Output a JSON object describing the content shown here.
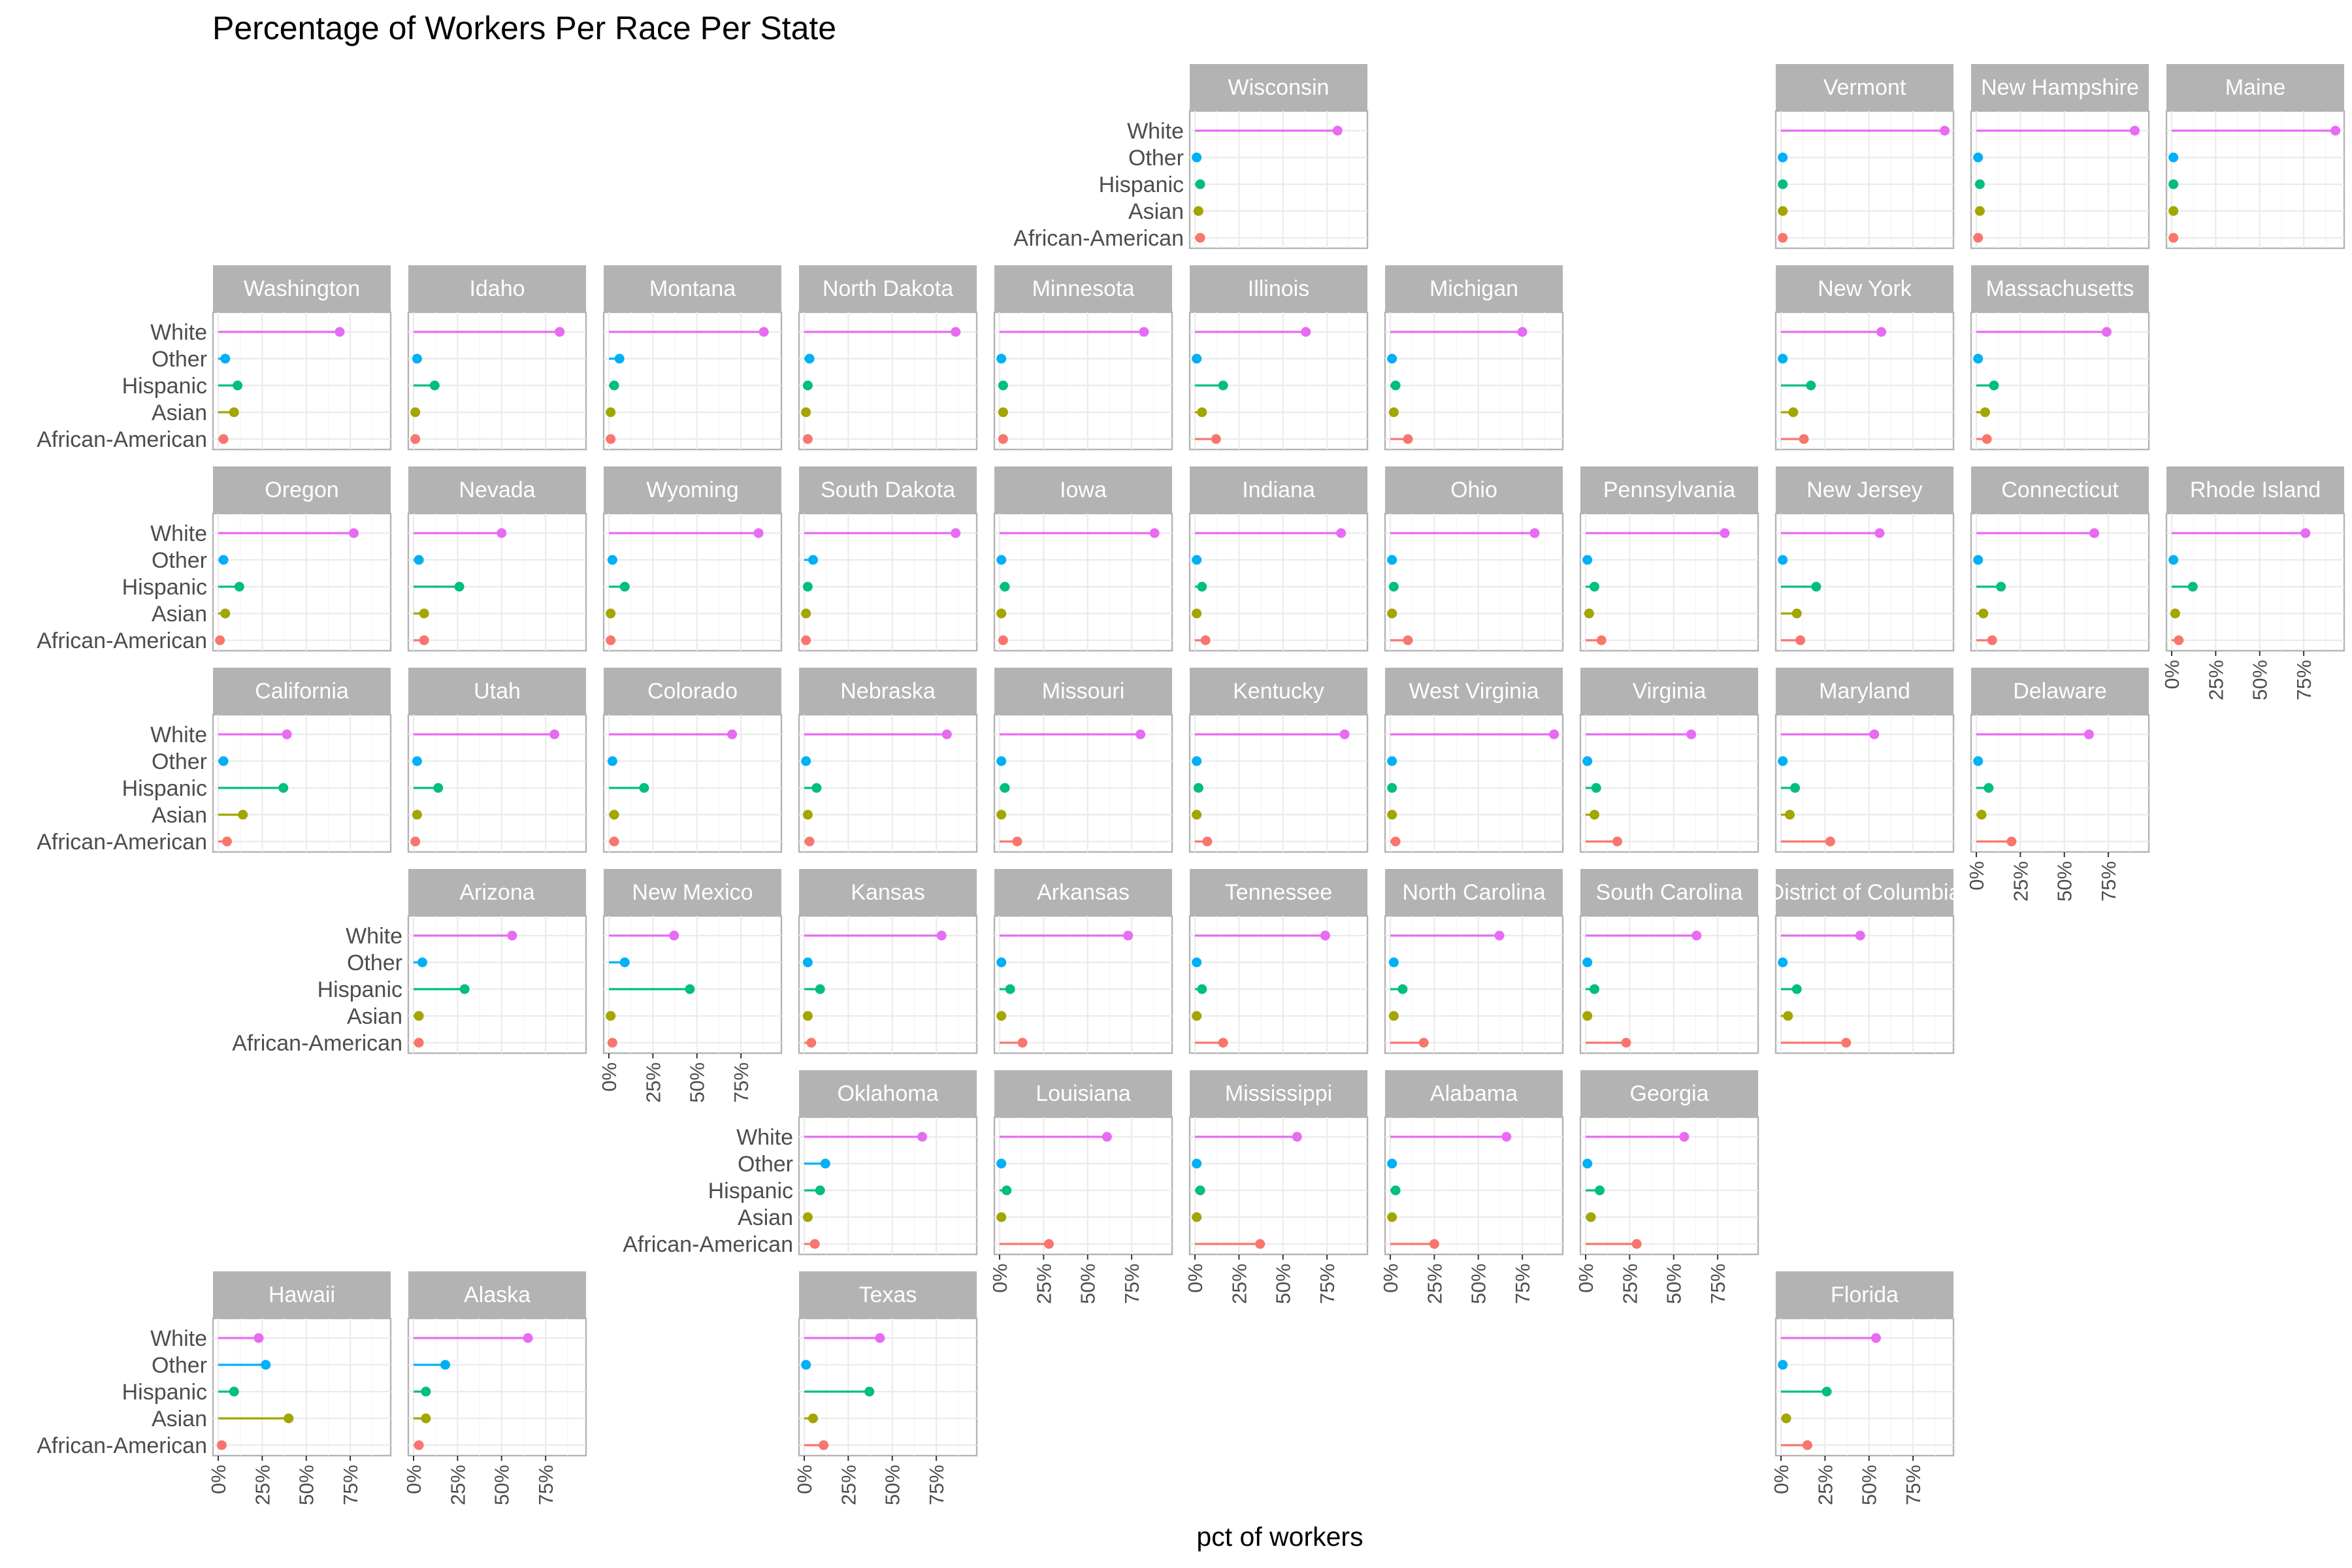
{
  "chart_data": {
    "type": "lollipop-facet",
    "title": "Percentage of Workers Per Race Per State",
    "xlabel": "pct of workers",
    "ylabel": "",
    "xlim": [
      0,
      95
    ],
    "x_ticks": [
      "0%",
      "25%",
      "50%",
      "75%"
    ],
    "categories": [
      "White",
      "Other",
      "Hispanic",
      "Asian",
      "African-American"
    ],
    "series_colors": {
      "White": "#E76BF3",
      "Other": "#00B0F6",
      "Hispanic": "#00BF7D",
      "Asian": "#A3A500",
      "African-American": "#F8766D"
    },
    "grid": true,
    "states": [
      {
        "name": "Wisconsin",
        "values": [
          81,
          1,
          3,
          2,
          3
        ]
      },
      {
        "name": "Vermont",
        "values": [
          93,
          1,
          1,
          1,
          1
        ]
      },
      {
        "name": "New Hampshire",
        "values": [
          90,
          1,
          2,
          2,
          1
        ]
      },
      {
        "name": "Maine",
        "values": [
          93,
          1,
          1,
          1,
          1
        ]
      },
      {
        "name": "Washington",
        "values": [
          69,
          4,
          11,
          9,
          3
        ]
      },
      {
        "name": "Idaho",
        "values": [
          83,
          2,
          12,
          1,
          1
        ]
      },
      {
        "name": "Montana",
        "values": [
          88,
          6,
          3,
          1,
          1
        ]
      },
      {
        "name": "North Dakota",
        "values": [
          86,
          3,
          2,
          1,
          2
        ]
      },
      {
        "name": "Minnesota",
        "values": [
          82,
          1,
          2,
          2,
          2
        ]
      },
      {
        "name": "Illinois",
        "values": [
          63,
          1,
          16,
          4,
          12
        ]
      },
      {
        "name": "Michigan",
        "values": [
          75,
          1,
          3,
          2,
          10
        ]
      },
      {
        "name": "New York",
        "values": [
          57,
          1,
          17,
          7,
          13
        ]
      },
      {
        "name": "Massachusetts",
        "values": [
          74,
          1,
          10,
          5,
          6
        ]
      },
      {
        "name": "Oregon",
        "values": [
          77,
          3,
          12,
          4,
          1
        ]
      },
      {
        "name": "Nevada",
        "values": [
          50,
          3,
          26,
          6,
          6
        ]
      },
      {
        "name": "Wyoming",
        "values": [
          85,
          2,
          9,
          1,
          1
        ]
      },
      {
        "name": "South Dakota",
        "values": [
          86,
          5,
          2,
          1,
          1
        ]
      },
      {
        "name": "Iowa",
        "values": [
          88,
          1,
          3,
          1,
          2
        ]
      },
      {
        "name": "Indiana",
        "values": [
          83,
          1,
          4,
          1,
          6
        ]
      },
      {
        "name": "Ohio",
        "values": [
          82,
          1,
          2,
          1,
          10
        ]
      },
      {
        "name": "Pennsylvania",
        "values": [
          79,
          1,
          5,
          2,
          9
        ]
      },
      {
        "name": "New Jersey",
        "values": [
          56,
          1,
          20,
          9,
          11
        ]
      },
      {
        "name": "Connecticut",
        "values": [
          67,
          1,
          14,
          4,
          9
        ]
      },
      {
        "name": "Rhode Island",
        "values": [
          76,
          1,
          12,
          2,
          4
        ]
      },
      {
        "name": "California",
        "values": [
          39,
          3,
          37,
          14,
          5
        ]
      },
      {
        "name": "Utah",
        "values": [
          80,
          2,
          14,
          2,
          1
        ]
      },
      {
        "name": "Colorado",
        "values": [
          70,
          2,
          20,
          3,
          3
        ]
      },
      {
        "name": "Nebraska",
        "values": [
          81,
          1,
          7,
          2,
          3
        ]
      },
      {
        "name": "Missouri",
        "values": [
          80,
          1,
          3,
          1,
          10
        ]
      },
      {
        "name": "Kentucky",
        "values": [
          85,
          1,
          2,
          1,
          7
        ]
      },
      {
        "name": "West Virginia",
        "values": [
          93,
          1,
          1,
          1,
          3
        ]
      },
      {
        "name": "Virginia",
        "values": [
          60,
          1,
          6,
          5,
          18
        ]
      },
      {
        "name": "Maryland",
        "values": [
          53,
          1,
          8,
          5,
          28
        ]
      },
      {
        "name": "Delaware",
        "values": [
          64,
          1,
          7,
          3,
          20
        ]
      },
      {
        "name": "Arizona",
        "values": [
          56,
          5,
          29,
          3,
          3
        ]
      },
      {
        "name": "New Mexico",
        "values": [
          37,
          9,
          46,
          1,
          2
        ]
      },
      {
        "name": "Kansas",
        "values": [
          78,
          2,
          9,
          2,
          4
        ]
      },
      {
        "name": "Arkansas",
        "values": [
          73,
          1,
          6,
          1,
          13
        ]
      },
      {
        "name": "Tennessee",
        "values": [
          74,
          1,
          4,
          1,
          16
        ]
      },
      {
        "name": "North Carolina",
        "values": [
          62,
          2,
          7,
          2,
          19
        ]
      },
      {
        "name": "South Carolina",
        "values": [
          63,
          1,
          5,
          1,
          23
        ]
      },
      {
        "name": "District of Columbia",
        "values": [
          45,
          1,
          9,
          4,
          37
        ]
      },
      {
        "name": "Oklahoma",
        "values": [
          67,
          12,
          9,
          2,
          6
        ]
      },
      {
        "name": "Louisiana",
        "values": [
          61,
          1,
          4,
          1,
          28
        ]
      },
      {
        "name": "Mississippi",
        "values": [
          58,
          1,
          3,
          1,
          37
        ]
      },
      {
        "name": "Alabama",
        "values": [
          66,
          1,
          3,
          1,
          25
        ]
      },
      {
        "name": "Georgia",
        "values": [
          56,
          1,
          8,
          3,
          29
        ]
      },
      {
        "name": "Hawaii",
        "values": [
          23,
          27,
          9,
          40,
          2
        ]
      },
      {
        "name": "Alaska",
        "values": [
          65,
          18,
          7,
          7,
          3
        ]
      },
      {
        "name": "Texas",
        "values": [
          43,
          1,
          37,
          5,
          11
        ]
      },
      {
        "name": "Florida",
        "values": [
          54,
          1,
          26,
          3,
          15
        ]
      }
    ]
  }
}
